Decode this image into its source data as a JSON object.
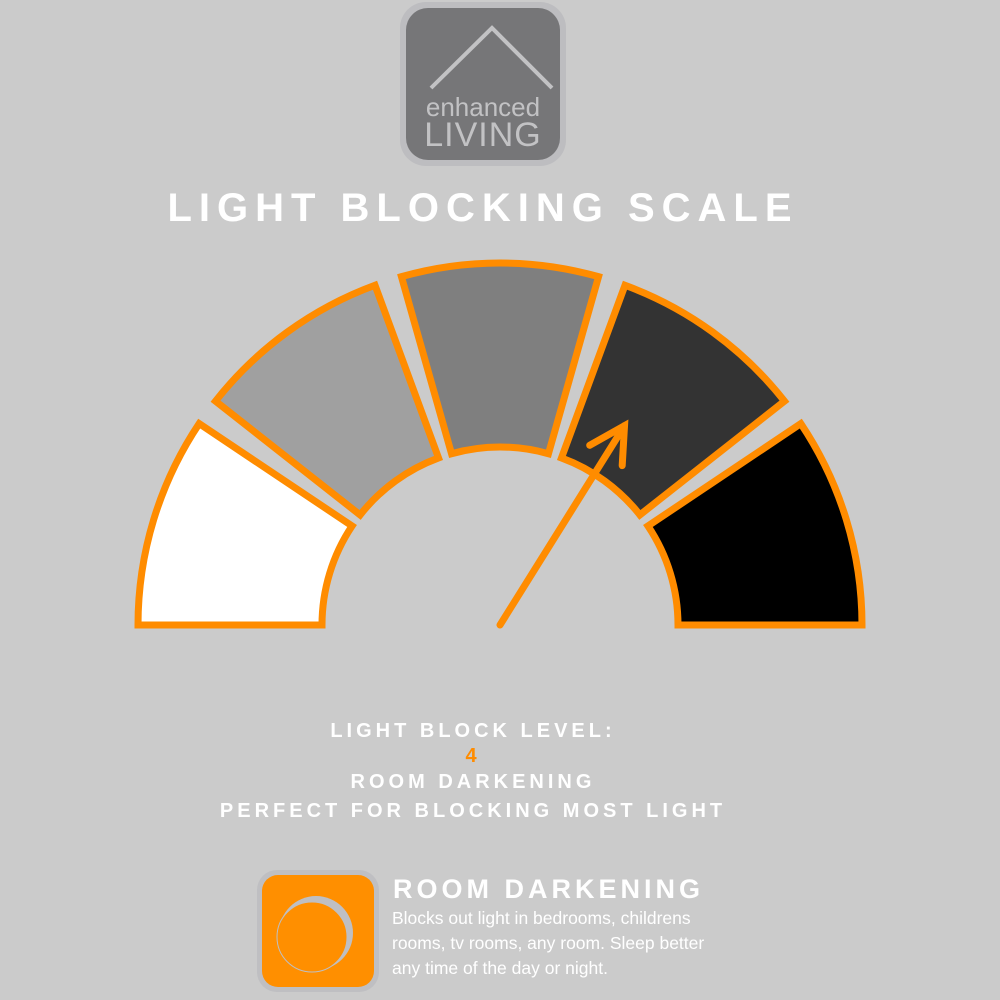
{
  "logo": {
    "line1": "enhanced",
    "line2": "LIVING"
  },
  "title": "LIGHT BLOCKING SCALE",
  "gauge": {
    "levels": 5,
    "current_level": 4,
    "segment_colors": [
      "#ffffff",
      "#a0a0a0",
      "#7f7f7f",
      "#333333",
      "#000000"
    ],
    "border_color": "#ff8c00",
    "needle_color": "#ff8c00"
  },
  "info": {
    "label": "LIGHT BLOCK LEVEL:",
    "level_value": "4",
    "level_name": "ROOM DARKENING",
    "tagline": "PERFECT FOR BLOCKING MOST LIGHT"
  },
  "feature": {
    "icon": "moon-icon",
    "title": "ROOM DARKENING",
    "description": "Blocks out light in bedrooms, childrens rooms, tv rooms, any room. Sleep better any time of the day or night."
  }
}
